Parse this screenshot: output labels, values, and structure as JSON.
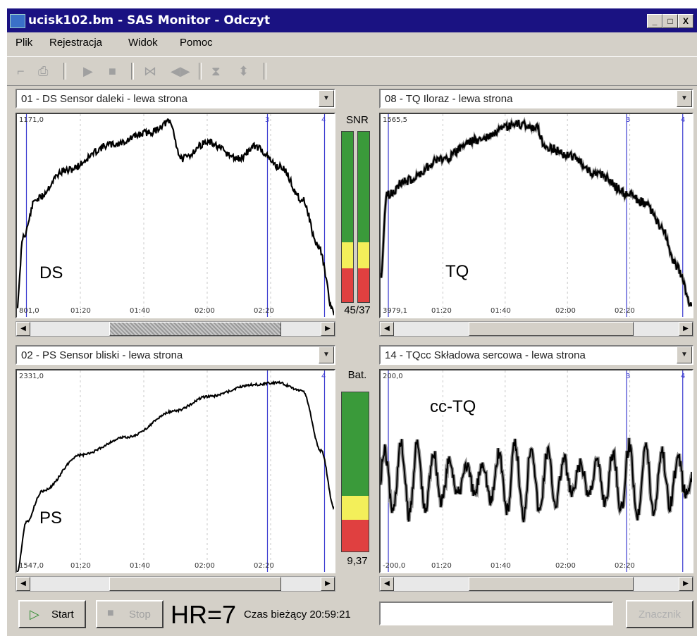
{
  "window": {
    "title": "ucisk102.bm - SAS Monitor - Odczyt"
  },
  "titlebar_buttons": [
    "_",
    "□",
    "X"
  ],
  "menu": [
    "Plik",
    "Rejestracja",
    "Widok",
    "Pomoc"
  ],
  "toolbar_icons": [
    "open-icon",
    "print-icon",
    "play-icon",
    "stop-icon",
    "collapse-horizontal-icon",
    "expand-horizontal-icon",
    "collapse-vertical-icon",
    "expand-vertical-icon"
  ],
  "channels": [
    {
      "id": "ds",
      "select": "01 - DS Sensor daleki - lewa strona",
      "ymax": "1171,0",
      "ymin": "801,0",
      "ticks": [
        "01:20",
        "01:40",
        "02:00",
        "02:20"
      ],
      "markers": [
        "3",
        "4"
      ],
      "label": "DS"
    },
    {
      "id": "tq",
      "select": "08 - TQ Iloraz - lewa strona",
      "ymax": "1565,5",
      "ymin": "3979,1",
      "ticks": [
        "01:20",
        "01:40",
        "02:00",
        "02:20"
      ],
      "markers": [
        "3",
        "4"
      ],
      "label": "TQ"
    },
    {
      "id": "ps",
      "select": "02 - PS Sensor bliski - lewa strona",
      "ymax": "2331,0",
      "ymin": "1547,0",
      "ticks": [
        "01:20",
        "01:40",
        "02:00",
        "02:20"
      ],
      "markers": [
        "4"
      ],
      "label": "PS"
    },
    {
      "id": "cc",
      "select": "14 - TQcc Składowa sercowa - lewa strona",
      "ymax": "200,0",
      "ymin": "-200,0",
      "ticks": [
        "01:20",
        "01:40",
        "02:00",
        "02:20"
      ],
      "markers": [
        "3",
        "4"
      ],
      "label": "cc-TQ"
    }
  ],
  "snr": {
    "label": "SNR",
    "value": "45/37",
    "green_fraction": 0.65,
    "yellow_fraction": 0.15,
    "red_fraction": 0.2
  },
  "battery": {
    "label": "Bat.",
    "value": "9,37",
    "green_fraction": 0.65,
    "yellow_fraction": 0.15,
    "red_fraction": 0.2
  },
  "colors": {
    "green": "#3a9a3a",
    "yellow": "#f3ef5a",
    "red": "#e04040",
    "titlebar": "#1a1282",
    "marker": "#3a3ad0"
  },
  "bottom": {
    "start_label": "Start",
    "stop_label": "Stop",
    "hr_text": "HR=7",
    "clock_text": "Czas bieżący 20:59:21",
    "mark_label": "Znacznik"
  }
}
